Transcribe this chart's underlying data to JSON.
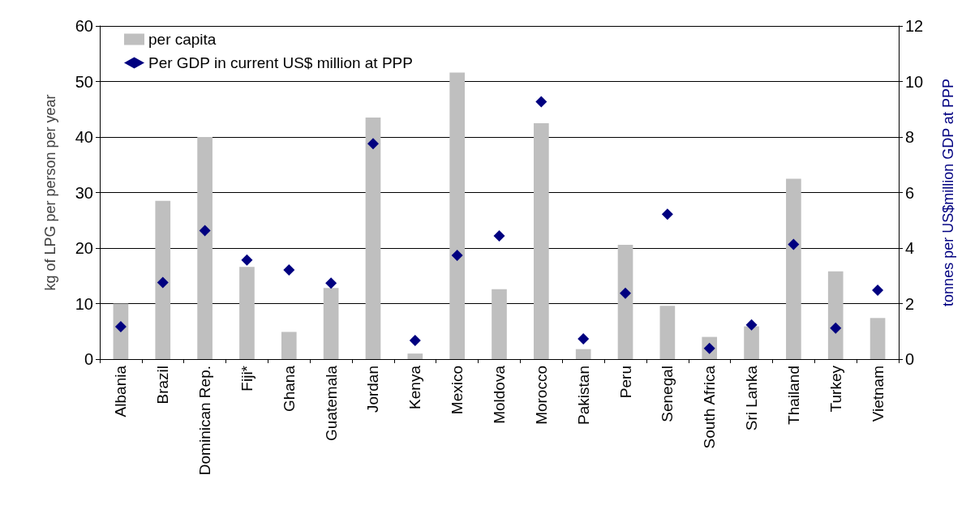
{
  "chart_data": {
    "type": "bar",
    "ylabel": "kg of LPG per person per year",
    "y2label": "tonnes per US$million GDP at PPP",
    "categories": [
      "Albania",
      "Brazil",
      "Dominican Rep.",
      "Fiji*",
      "Ghana",
      "Guatemala",
      "Jordan",
      "Kenya",
      "Mexico",
      "Moldova",
      "Morocco",
      "Pakistan",
      "Peru",
      "Senegal",
      "South Africa",
      "Sri Lanka",
      "Thailand",
      "Turkey",
      "Vietnam"
    ],
    "series": [
      {
        "name": "per capita",
        "color": "#bfbfbf",
        "values": [
          10.0,
          28.5,
          40.0,
          16.6,
          4.9,
          12.8,
          43.5,
          1.0,
          51.6,
          12.6,
          42.5,
          1.8,
          20.6,
          9.6,
          4.0,
          5.9,
          32.5,
          15.8,
          7.4
        ]
      },
      {
        "name": "Per GDP in current US$ million at PPP",
        "type": "scatter",
        "axis": "y2",
        "marker": "diamond",
        "color": "#000080",
        "values": [
          1.17,
          2.76,
          4.63,
          3.57,
          3.21,
          2.74,
          7.76,
          0.67,
          3.74,
          4.44,
          9.27,
          0.73,
          2.37,
          5.22,
          0.39,
          1.23,
          4.13,
          1.12,
          2.48
        ]
      }
    ],
    "ylim": [
      0,
      60
    ],
    "yticks": [
      0,
      10,
      20,
      30,
      40,
      50,
      60
    ],
    "y2lim": [
      0,
      12
    ],
    "y2ticks": [
      0,
      2,
      4,
      6,
      8,
      10,
      12
    ],
    "grid": "y",
    "legend": "top left"
  }
}
